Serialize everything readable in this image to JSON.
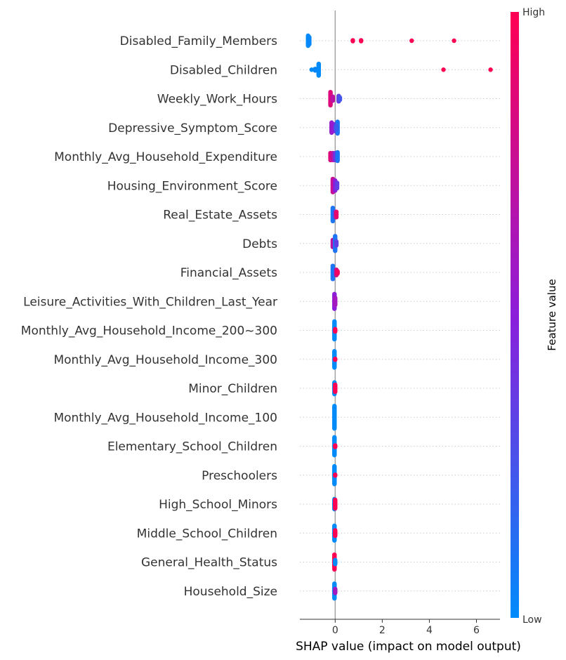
{
  "chart_data": {
    "type": "scatter",
    "subtype": "shap-beeswarm",
    "title": "",
    "xlabel": "SHAP value (impact on model output)",
    "ylabel": "",
    "xlim": [
      -1.5,
      7.0
    ],
    "x_ticks": [
      0,
      2,
      4,
      6
    ],
    "x_tick_labels": [
      "0",
      "2",
      "4",
      "6"
    ],
    "zero_line": true,
    "grid": "row-dotted",
    "colorbar": {
      "title": "Feature value",
      "high_label": "High",
      "low_label": "Low",
      "high_color": "#ff0052",
      "mid_color": "#8c1eda",
      "low_color": "#008bfb",
      "placement": "right"
    },
    "features": [
      {
        "name": "Disabled_Family_Members",
        "points": [
          {
            "x": -1.15,
            "v": 0.0,
            "n": 14
          },
          {
            "x": -1.1,
            "v": 0.02,
            "n": 10
          },
          {
            "x": 0.75,
            "v": 1.0,
            "n": 2
          },
          {
            "x": 1.1,
            "v": 1.0,
            "n": 2
          },
          {
            "x": 3.25,
            "v": 1.0,
            "n": 1
          },
          {
            "x": 5.05,
            "v": 1.0,
            "n": 1
          }
        ]
      },
      {
        "name": "Disabled_Children",
        "points": [
          {
            "x": -1.0,
            "v": 0.0,
            "n": 1
          },
          {
            "x": -0.85,
            "v": 0.02,
            "n": 3
          },
          {
            "x": -0.7,
            "v": 0.0,
            "n": 16
          },
          {
            "x": 4.6,
            "v": 1.0,
            "n": 1
          },
          {
            "x": 6.6,
            "v": 1.0,
            "n": 1
          }
        ]
      },
      {
        "name": "Weekly_Work_Hours",
        "points": [
          {
            "x": -0.2,
            "v": 0.85,
            "n": 18
          },
          {
            "x": -0.1,
            "v": 0.7,
            "n": 6
          },
          {
            "x": 0.15,
            "v": 0.35,
            "n": 8
          },
          {
            "x": 0.2,
            "v": 0.25,
            "n": 4
          }
        ]
      },
      {
        "name": "Depressive_Symptom_Score",
        "points": [
          {
            "x": -0.15,
            "v": 0.55,
            "n": 14
          },
          {
            "x": 0.0,
            "v": 0.45,
            "n": 10
          },
          {
            "x": 0.1,
            "v": 0.1,
            "n": 16
          },
          {
            "x": 0.05,
            "v": 0.2,
            "n": 6
          }
        ]
      },
      {
        "name": "Monthly_Avg_Household_Expenditure",
        "points": [
          {
            "x": -0.2,
            "v": 0.85,
            "n": 10
          },
          {
            "x": -0.1,
            "v": 0.7,
            "n": 10
          },
          {
            "x": 0.0,
            "v": 0.4,
            "n": 10
          },
          {
            "x": 0.1,
            "v": 0.1,
            "n": 12
          }
        ]
      },
      {
        "name": "Housing_Environment_Score",
        "points": [
          {
            "x": -0.1,
            "v": 0.75,
            "n": 18
          },
          {
            "x": 0.0,
            "v": 0.5,
            "n": 14
          },
          {
            "x": 0.08,
            "v": 0.35,
            "n": 8
          }
        ]
      },
      {
        "name": "Real_Estate_Assets",
        "points": [
          {
            "x": -0.1,
            "v": 0.1,
            "n": 18
          },
          {
            "x": 0.0,
            "v": 0.3,
            "n": 8
          },
          {
            "x": 0.05,
            "v": 0.9,
            "n": 8
          }
        ]
      },
      {
        "name": "Debts",
        "points": [
          {
            "x": -0.1,
            "v": 0.7,
            "n": 10
          },
          {
            "x": 0.0,
            "v": 0.1,
            "n": 20
          },
          {
            "x": 0.05,
            "v": 0.35,
            "n": 6
          }
        ]
      },
      {
        "name": "Financial_Assets",
        "points": [
          {
            "x": -0.1,
            "v": 0.1,
            "n": 18
          },
          {
            "x": 0.05,
            "v": 0.8,
            "n": 8
          },
          {
            "x": 0.1,
            "v": 0.95,
            "n": 4
          }
        ]
      },
      {
        "name": "Leisure_Activities_With_Children_Last_Year",
        "points": [
          {
            "x": -0.03,
            "v": 0.5,
            "n": 20
          },
          {
            "x": 0.0,
            "v": 0.6,
            "n": 10
          }
        ]
      },
      {
        "name": "Monthly_Avg_Household_Income_200~300",
        "points": [
          {
            "x": -0.03,
            "v": 0.0,
            "n": 24
          },
          {
            "x": 0.0,
            "v": 1.0,
            "n": 4
          }
        ]
      },
      {
        "name": "Monthly_Avg_Household_Income_300",
        "points": [
          {
            "x": -0.03,
            "v": 0.0,
            "n": 22
          },
          {
            "x": 0.0,
            "v": 1.0,
            "n": 2
          }
        ]
      },
      {
        "name": "Minor_Children",
        "points": [
          {
            "x": -0.03,
            "v": 0.0,
            "n": 16
          },
          {
            "x": 0.0,
            "v": 1.0,
            "n": 10
          }
        ]
      },
      {
        "name": "Monthly_Avg_Household_Income_100",
        "points": [
          {
            "x": -0.03,
            "v": 0.0,
            "n": 30
          }
        ]
      },
      {
        "name": "Elementary_School_Children",
        "points": [
          {
            "x": -0.03,
            "v": 0.0,
            "n": 24
          },
          {
            "x": 0.0,
            "v": 1.0,
            "n": 3
          }
        ]
      },
      {
        "name": "Preschoolers",
        "points": [
          {
            "x": -0.03,
            "v": 0.0,
            "n": 24
          },
          {
            "x": 0.0,
            "v": 1.0,
            "n": 2
          }
        ]
      },
      {
        "name": "High_School_Minors",
        "points": [
          {
            "x": -0.03,
            "v": 0.0,
            "n": 14
          },
          {
            "x": 0.0,
            "v": 1.0,
            "n": 12
          }
        ]
      },
      {
        "name": "Middle_School_Children",
        "points": [
          {
            "x": -0.03,
            "v": 0.0,
            "n": 20
          },
          {
            "x": 0.0,
            "v": 1.0,
            "n": 8
          }
        ]
      },
      {
        "name": "General_Health_Status",
        "points": [
          {
            "x": -0.03,
            "v": 1.0,
            "n": 20
          },
          {
            "x": 0.0,
            "v": 0.0,
            "n": 6
          }
        ]
      },
      {
        "name": "Household_Size",
        "points": [
          {
            "x": -0.03,
            "v": 0.0,
            "n": 20
          },
          {
            "x": 0.0,
            "v": 0.6,
            "n": 6
          }
        ]
      }
    ]
  }
}
